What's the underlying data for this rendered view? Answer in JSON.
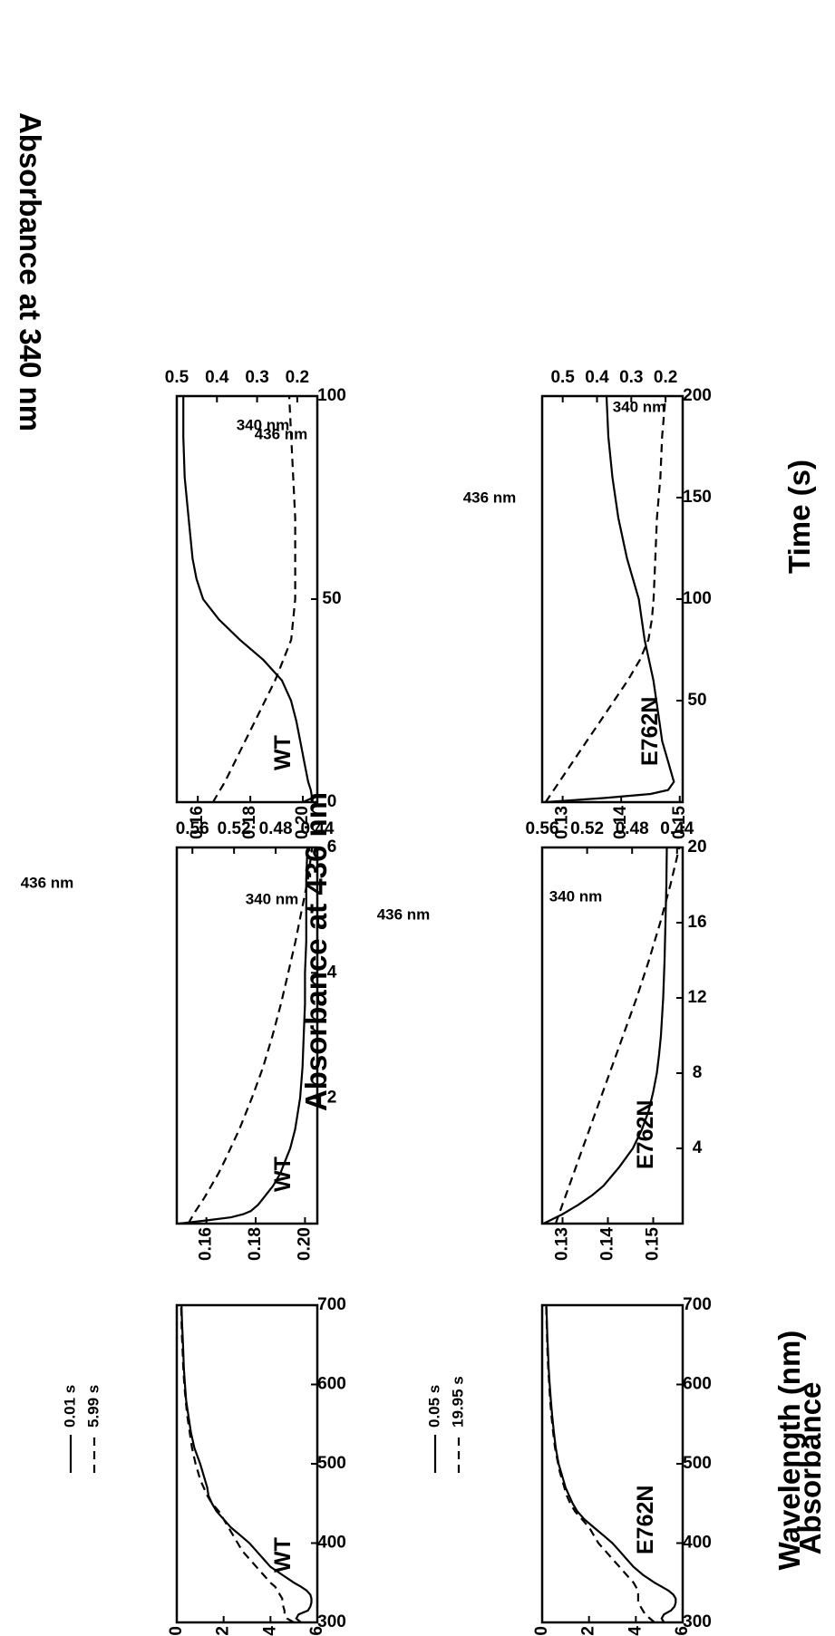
{
  "figure": {
    "top_axis_title": "Absorbance at 340 nm",
    "left_axis_title": "Absorbance",
    "middle_axis_title": "Absorbance at 436 nm",
    "wavelength_axis_title": "Wavelength (nm)",
    "time_axis_title": "Time (s)"
  },
  "chart_data": [
    {
      "id": "spectra_wt",
      "type": "line",
      "panel_label": "WT",
      "xlabel": "Wavelength (nm)",
      "ylabel": "Absorbance",
      "xlim": [
        300,
        700
      ],
      "ylim": [
        0,
        0.6
      ],
      "xticks": [
        "300",
        "400",
        "500",
        "600",
        "700"
      ],
      "yticks": [
        "0.0",
        "0.2",
        "0.4",
        "0.6"
      ],
      "legend": "top-right",
      "series": [
        {
          "name": "0.01 s",
          "style": "solid",
          "x": [
            300,
            305,
            310,
            315,
            320,
            325,
            330,
            335,
            340,
            345,
            350,
            360,
            370,
            380,
            390,
            400,
            410,
            420,
            430,
            440,
            450,
            460,
            470,
            480,
            490,
            500,
            520,
            540,
            560,
            580,
            600,
            620,
            640,
            660,
            680,
            700
          ],
          "y": [
            0.53,
            0.51,
            0.52,
            0.56,
            0.57,
            0.575,
            0.575,
            0.57,
            0.555,
            0.53,
            0.5,
            0.45,
            0.4,
            0.37,
            0.34,
            0.31,
            0.27,
            0.23,
            0.2,
            0.17,
            0.15,
            0.135,
            0.13,
            0.12,
            0.11,
            0.1,
            0.075,
            0.06,
            0.05,
            0.04,
            0.035,
            0.03,
            0.028,
            0.025,
            0.022,
            0.02
          ]
        },
        {
          "name": "5.99 s",
          "style": "dashed",
          "x": [
            300,
            305,
            310,
            315,
            320,
            325,
            330,
            335,
            340,
            345,
            350,
            360,
            370,
            380,
            390,
            400,
            410,
            420,
            430,
            440,
            450,
            460,
            470,
            480,
            490,
            500,
            520,
            540,
            560,
            580,
            600,
            620,
            640,
            660,
            680,
            700
          ],
          "y": [
            0.5,
            0.47,
            0.46,
            0.46,
            0.455,
            0.45,
            0.45,
            0.44,
            0.43,
            0.42,
            0.4,
            0.37,
            0.34,
            0.31,
            0.28,
            0.26,
            0.24,
            0.22,
            0.2,
            0.18,
            0.15,
            0.13,
            0.115,
            0.1,
            0.09,
            0.08,
            0.065,
            0.055,
            0.045,
            0.038,
            0.032,
            0.028,
            0.025,
            0.022,
            0.02,
            0.018
          ]
        }
      ]
    },
    {
      "id": "spectra_e762n",
      "type": "line",
      "panel_label": "E762N",
      "xlabel": "Wavelength (nm)",
      "ylabel": "Absorbance",
      "xlim": [
        300,
        700
      ],
      "ylim": [
        0,
        0.6
      ],
      "xticks": [
        "300",
        "400",
        "500",
        "600",
        "700"
      ],
      "yticks": [
        "0.0",
        "0.2",
        "0.4",
        "0.6"
      ],
      "legend": "top-right",
      "series": [
        {
          "name": "0.05 s",
          "style": "solid",
          "x": [
            300,
            305,
            310,
            315,
            320,
            325,
            330,
            335,
            340,
            345,
            350,
            360,
            370,
            380,
            390,
            400,
            410,
            420,
            430,
            440,
            450,
            460,
            470,
            480,
            490,
            500,
            520,
            540,
            560,
            580,
            600,
            620,
            640,
            660,
            680,
            700
          ],
          "y": [
            0.52,
            0.51,
            0.52,
            0.55,
            0.565,
            0.57,
            0.57,
            0.56,
            0.54,
            0.51,
            0.48,
            0.43,
            0.39,
            0.36,
            0.33,
            0.3,
            0.26,
            0.22,
            0.18,
            0.15,
            0.13,
            0.115,
            0.1,
            0.09,
            0.08,
            0.07,
            0.058,
            0.05,
            0.043,
            0.037,
            0.032,
            0.028,
            0.025,
            0.022,
            0.02,
            0.018
          ]
        },
        {
          "name": "19.95 s",
          "style": "dashed",
          "x": [
            300,
            305,
            310,
            315,
            320,
            325,
            330,
            335,
            340,
            345,
            350,
            360,
            370,
            380,
            390,
            400,
            410,
            420,
            430,
            440,
            450,
            460,
            470,
            480,
            490,
            500,
            520,
            540,
            560,
            580,
            600,
            620,
            640,
            660,
            680,
            700
          ],
          "y": [
            0.48,
            0.46,
            0.44,
            0.43,
            0.42,
            0.41,
            0.41,
            0.41,
            0.41,
            0.4,
            0.39,
            0.36,
            0.33,
            0.3,
            0.27,
            0.24,
            0.22,
            0.2,
            0.17,
            0.14,
            0.12,
            0.105,
            0.095,
            0.085,
            0.075,
            0.068,
            0.055,
            0.047,
            0.04,
            0.034,
            0.03,
            0.026,
            0.023,
            0.021,
            0.019,
            0.017
          ]
        }
      ]
    },
    {
      "id": "kinetics_wt_fast",
      "type": "line",
      "panel_label": "WT",
      "xlabel": "Time (s)",
      "ylabel_left": "Absorbance at 436 nm",
      "ylabel_right": "Absorbance at 340 nm",
      "xlim": [
        0,
        6
      ],
      "ylim_left": [
        0.148,
        0.205
      ],
      "ylim_right": [
        0.44,
        0.575
      ],
      "xticks": [
        "2",
        "4",
        "6"
      ],
      "yticks_left": [
        "0.16",
        "0.18",
        "0.20"
      ],
      "yticks_right": [
        "0.44",
        "0.48",
        "0.52",
        "0.56"
      ],
      "series": [
        {
          "name": "436 nm",
          "style": "solid",
          "axis": "left",
          "x": [
            0,
            0.05,
            0.1,
            0.15,
            0.2,
            0.3,
            0.4,
            0.5,
            0.6,
            0.8,
            1.0,
            1.2,
            1.5,
            2.0,
            2.5,
            3.0,
            3.5,
            4.0,
            4.5,
            5.0,
            5.5,
            6.0
          ],
          "y": [
            0.149,
            0.16,
            0.17,
            0.175,
            0.178,
            0.181,
            0.183,
            0.185,
            0.187,
            0.19,
            0.192,
            0.194,
            0.196,
            0.198,
            0.199,
            0.1995,
            0.2,
            0.2,
            0.2005,
            0.2005,
            0.2005,
            0.201
          ]
        },
        {
          "name": "340 nm",
          "style": "dashed",
          "axis": "right",
          "x": [
            0,
            0.2,
            0.4,
            0.6,
            0.8,
            1.0,
            1.5,
            2.0,
            2.5,
            3.0,
            3.5,
            4.0,
            4.5,
            5.0,
            5.5,
            6.0
          ],
          "y": [
            0.564,
            0.557,
            0.549,
            0.542,
            0.535,
            0.529,
            0.515,
            0.503,
            0.492,
            0.483,
            0.475,
            0.468,
            0.461,
            0.455,
            0.449,
            0.445
          ]
        }
      ]
    },
    {
      "id": "kinetics_e762n_fast",
      "type": "line",
      "panel_label": "E762N",
      "xlabel": "Time (s)",
      "ylabel_left": "Absorbance at 436 nm",
      "ylabel_right": "Absorbance at 340 nm",
      "xlim": [
        0,
        20
      ],
      "ylim_left": [
        0.1255,
        0.1565
      ],
      "ylim_right": [
        0.435,
        0.56
      ],
      "xticks": [
        "4",
        "8",
        "12",
        "16",
        "20"
      ],
      "yticks_left": [
        "0.13",
        "0.14",
        "0.15"
      ],
      "yticks_right": [
        "0.44",
        "0.48",
        "0.52",
        "0.56"
      ],
      "series": [
        {
          "name": "436 nm",
          "style": "solid",
          "axis": "left",
          "x": [
            0,
            0.5,
            1,
            1.5,
            2,
            3,
            4,
            5,
            6,
            7,
            8,
            9,
            10,
            12,
            14,
            16,
            18,
            20
          ],
          "y": [
            0.1258,
            0.13,
            0.1335,
            0.1365,
            0.139,
            0.1425,
            0.1455,
            0.1475,
            0.149,
            0.15,
            0.1508,
            0.1513,
            0.1517,
            0.1522,
            0.1525,
            0.1527,
            0.1529,
            0.153
          ]
        },
        {
          "name": "340 nm",
          "style": "dashed",
          "axis": "right",
          "x": [
            0,
            1,
            2,
            3,
            4,
            5,
            6,
            8,
            10,
            12,
            14,
            16,
            18,
            20
          ],
          "y": [
            0.548,
            0.542,
            0.536,
            0.53,
            0.524,
            0.518,
            0.512,
            0.5,
            0.488,
            0.476,
            0.465,
            0.455,
            0.446,
            0.438
          ]
        }
      ]
    },
    {
      "id": "kinetics_wt_slow",
      "type": "line",
      "panel_label": "WT",
      "xlabel": "Time (s)",
      "ylabel_left": "Absorbance at 436 nm",
      "ylabel_right": "Absorbance at 340 nm",
      "xlim": [
        0,
        100
      ],
      "ylim_left": [
        0.152,
        0.2055
      ],
      "ylim_right": [
        0.15,
        0.5
      ],
      "xticks": [
        "0",
        "50",
        "100"
      ],
      "yticks_left": [
        "0.16",
        "0.18",
        "0.20"
      ],
      "yticks_right": [
        "0.2",
        "0.3",
        "0.4",
        "0.5"
      ],
      "series": [
        {
          "name": "436 nm",
          "style": "solid",
          "axis": "left",
          "x": [
            0,
            1,
            3,
            5,
            10,
            15,
            20,
            25,
            30,
            35,
            40,
            45,
            50,
            55,
            60,
            70,
            80,
            90,
            100
          ],
          "y": [
            0.2,
            0.2035,
            0.203,
            0.202,
            0.2005,
            0.199,
            0.1975,
            0.1955,
            0.192,
            0.185,
            0.176,
            0.168,
            0.162,
            0.1595,
            0.158,
            0.1565,
            0.155,
            0.1545,
            0.1545
          ]
        },
        {
          "name": "340 nm",
          "style": "dashed",
          "axis": "right",
          "x": [
            0,
            5,
            10,
            15,
            20,
            25,
            30,
            35,
            40,
            45,
            50,
            55,
            60,
            70,
            80,
            90,
            100
          ],
          "y": [
            0.41,
            0.38,
            0.355,
            0.33,
            0.305,
            0.28,
            0.255,
            0.235,
            0.215,
            0.21,
            0.205,
            0.205,
            0.205,
            0.205,
            0.21,
            0.215,
            0.22
          ]
        }
      ]
    },
    {
      "id": "kinetics_e762n_slow",
      "type": "line",
      "panel_label": "E762N",
      "xlabel": "Time (s)",
      "ylabel_left": "Absorbance at 436 nm",
      "ylabel_right": "Absorbance at 340 nm",
      "xlim": [
        0,
        200
      ],
      "ylim_left": [
        0.1265,
        0.1505
      ],
      "ylim_right": [
        0.15,
        0.56
      ],
      "xticks": [
        "50",
        "100",
        "150",
        "200"
      ],
      "yticks_left": [
        "0.13",
        "0.14",
        "0.15"
      ],
      "yticks_right": [
        "0.2",
        "0.3",
        "0.4",
        "0.5"
      ],
      "series": [
        {
          "name": "436 nm",
          "style": "solid",
          "axis": "left",
          "x": [
            0,
            2,
            4,
            6,
            10,
            15,
            20,
            30,
            40,
            60,
            80,
            100,
            120,
            140,
            160,
            180,
            200
          ],
          "y": [
            0.127,
            0.137,
            0.145,
            0.148,
            0.149,
            0.1485,
            0.148,
            0.147,
            0.1465,
            0.1455,
            0.144,
            0.143,
            0.141,
            0.1395,
            0.1385,
            0.1378,
            0.1375
          ]
        },
        {
          "name": "340 nm",
          "style": "dashed",
          "axis": "right",
          "x": [
            0,
            10,
            20,
            30,
            40,
            50,
            60,
            70,
            80,
            90,
            100,
            120,
            140,
            160,
            180,
            200
          ],
          "y": [
            0.55,
            0.51,
            0.47,
            0.43,
            0.39,
            0.35,
            0.31,
            0.275,
            0.25,
            0.24,
            0.235,
            0.23,
            0.225,
            0.215,
            0.21,
            0.2
          ]
        }
      ]
    }
  ]
}
